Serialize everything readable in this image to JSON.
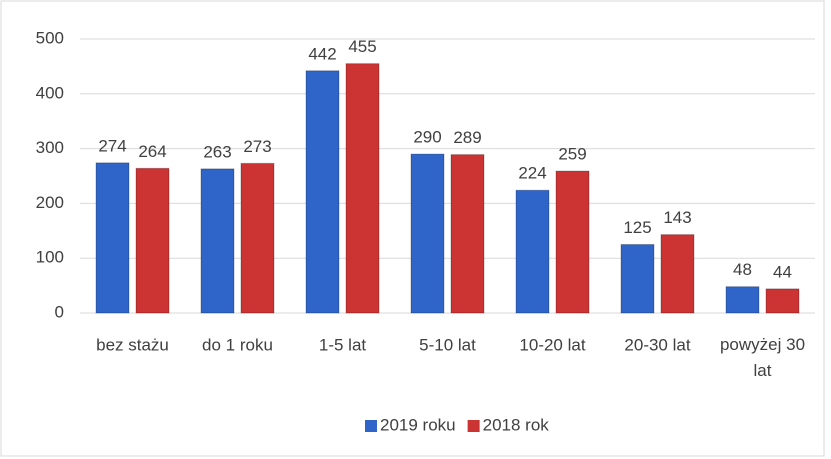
{
  "chart_data": {
    "type": "bar",
    "categories": [
      "bez stażu",
      "do 1 roku",
      "1-5 lat",
      "5-10 lat",
      "10-20 lat",
      "20-30 lat",
      "powyżej 30 lat"
    ],
    "series": [
      {
        "name": "2019 roku",
        "color": "#2f64c8",
        "values": [
          274,
          263,
          442,
          290,
          224,
          125,
          48
        ]
      },
      {
        "name": "2018 rok",
        "color": "#cc3333",
        "values": [
          264,
          273,
          455,
          289,
          259,
          143,
          44
        ]
      }
    ],
    "ylim": [
      0,
      500
    ],
    "yticks": [
      0,
      100,
      200,
      300,
      400,
      500
    ],
    "grid": true,
    "legend": "bottom"
  }
}
